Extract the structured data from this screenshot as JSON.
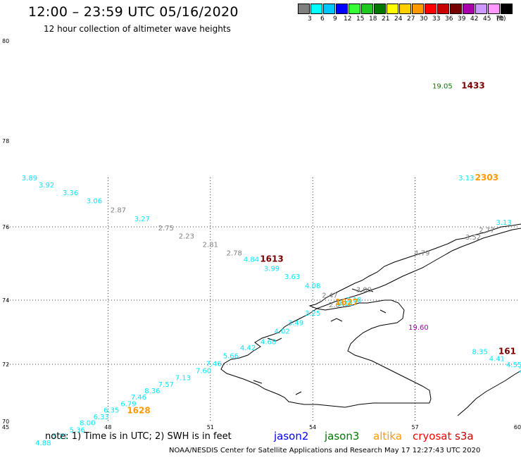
{
  "header": {
    "title": "12:00 – 23:59 UTC 05/16/2020",
    "subtitle": "12 hour collection of altimeter wave heights"
  },
  "scale": {
    "unit": "(ft)",
    "bins": [
      {
        "label": "3",
        "color": "#808080"
      },
      {
        "label": "6",
        "color": "#00ffff"
      },
      {
        "label": "9",
        "color": "#00c8ff"
      },
      {
        "label": "12",
        "color": "#0000ff"
      },
      {
        "label": "15",
        "color": "#33ff33"
      },
      {
        "label": "18",
        "color": "#22c822"
      },
      {
        "label": "21",
        "color": "#007800"
      },
      {
        "label": "24",
        "color": "#ffff00"
      },
      {
        "label": "27",
        "color": "#ffd000"
      },
      {
        "label": "30",
        "color": "#ff9900"
      },
      {
        "label": "33",
        "color": "#ff0000"
      },
      {
        "label": "36",
        "color": "#c80000"
      },
      {
        "label": "39",
        "color": "#780000"
      },
      {
        "label": "42",
        "color": "#aa00aa"
      },
      {
        "label": "45",
        "color": "#cc99ff"
      },
      {
        "label": "70",
        "color": "#ff99ff"
      },
      {
        "label": "",
        "color": "#000000"
      }
    ]
  },
  "axes": {
    "lon_labels": [
      "45",
      "48",
      "51",
      "54",
      "57",
      "60"
    ],
    "lat_labels": [
      "70",
      "72",
      "74",
      "76",
      "78",
      "80"
    ]
  },
  "points": [
    {
      "lon": 45.7,
      "lat": 77.08,
      "v": "3.89",
      "c": "#00e8ff"
    },
    {
      "lon": 46.2,
      "lat": 76.92,
      "v": "3.92",
      "c": "#00e8ff"
    },
    {
      "lon": 46.9,
      "lat": 76.74,
      "v": "3.36",
      "c": "#00e8ff"
    },
    {
      "lon": 47.6,
      "lat": 76.55,
      "v": "3.06",
      "c": "#00e8ff"
    },
    {
      "lon": 48.3,
      "lat": 76.34,
      "v": "2.87",
      "c": "#808080"
    },
    {
      "lon": 49.0,
      "lat": 76.13,
      "v": "3.27",
      "c": "#00e8ff"
    },
    {
      "lon": 49.7,
      "lat": 75.9,
      "v": "2.75",
      "c": "#808080"
    },
    {
      "lon": 50.3,
      "lat": 75.68,
      "v": "2.23",
      "c": "#808080"
    },
    {
      "lon": 51.0,
      "lat": 75.45,
      "v": "2.81",
      "c": "#808080"
    },
    {
      "lon": 51.7,
      "lat": 75.22,
      "v": "2.78",
      "c": "#808080"
    },
    {
      "lon": 52.2,
      "lat": 75.05,
      "v": "4.84",
      "c": "#00e8ff"
    },
    {
      "lon": 52.8,
      "lat": 74.8,
      "v": "3.99",
      "c": "#00e8ff"
    },
    {
      "lon": 53.4,
      "lat": 74.58,
      "v": "3.63",
      "c": "#00e8ff"
    },
    {
      "lon": 54.0,
      "lat": 74.33,
      "v": "4.08",
      "c": "#00e8ff"
    },
    {
      "lon": 54.5,
      "lat": 74.07,
      "v": "2.47",
      "c": "#808080"
    },
    {
      "lon": 54.7,
      "lat": 73.78,
      "v": "2.03",
      "c": "#808080"
    },
    {
      "lon": 55.2,
      "lat": 73.93,
      "v": "3.18",
      "c": "#00e8ff"
    },
    {
      "lon": 55.5,
      "lat": 74.22,
      "v": "3.00",
      "c": "#808080"
    },
    {
      "lon": 54.95,
      "lat": 73.82,
      "v": "3.11",
      "c": "#00e8ff"
    },
    {
      "lon": 54.0,
      "lat": 73.52,
      "v": "3.25",
      "c": "#00e8ff"
    },
    {
      "lon": 53.5,
      "lat": 73.22,
      "v": "3.49",
      "c": "#00e8ff"
    },
    {
      "lon": 53.1,
      "lat": 72.96,
      "v": "4.02",
      "c": "#00e8ff"
    },
    {
      "lon": 52.7,
      "lat": 72.63,
      "v": "4.68",
      "c": "#00e8ff"
    },
    {
      "lon": 52.1,
      "lat": 72.44,
      "v": "4.42",
      "c": "#00e8ff"
    },
    {
      "lon": 51.6,
      "lat": 72.19,
      "v": "5.66",
      "c": "#00e8ff"
    },
    {
      "lon": 51.1,
      "lat": 71.94,
      "v": "7.46",
      "c": "#00e8ff"
    },
    {
      "lon": 50.8,
      "lat": 71.69,
      "v": "7.60",
      "c": "#00e8ff"
    },
    {
      "lon": 50.2,
      "lat": 71.44,
      "v": "7.13",
      "c": "#00e8ff"
    },
    {
      "lon": 49.7,
      "lat": 71.21,
      "v": "7.57",
      "c": "#00e8ff"
    },
    {
      "lon": 49.3,
      "lat": 70.99,
      "v": "8.36",
      "c": "#00e8ff"
    },
    {
      "lon": 48.9,
      "lat": 70.76,
      "v": "7.46",
      "c": "#00e8ff"
    },
    {
      "lon": 48.6,
      "lat": 70.53,
      "v": "6.79",
      "c": "#00e8ff"
    },
    {
      "lon": 48.1,
      "lat": 70.31,
      "v": "6.35",
      "c": "#00e8ff"
    },
    {
      "lon": 47.8,
      "lat": 70.08,
      "v": "6.33",
      "c": "#00e8ff"
    },
    {
      "lon": 47.4,
      "lat": 69.86,
      "v": "8.00",
      "c": "#00e8ff"
    },
    {
      "lon": 47.1,
      "lat": 69.62,
      "v": "5.36",
      "c": "#00e8ff"
    },
    {
      "lon": 46.6,
      "lat": 69.4,
      "v": "5.21",
      "c": "#00e8ff"
    },
    {
      "lon": 46.1,
      "lat": 69.16,
      "v": "4.88",
      "c": "#00e8ff"
    },
    {
      "lon": 57.2,
      "lat": 75.22,
      "v": "4.79",
      "c": "#808080"
    },
    {
      "lon": 57.1,
      "lat": 73.08,
      "v": "19.60",
      "c": "#aa00aa"
    },
    {
      "lon": 58.7,
      "lat": 75.65,
      "v": "3.52",
      "c": "#808080"
    },
    {
      "lon": 59.1,
      "lat": 75.85,
      "v": "2.77",
      "c": "#808080"
    },
    {
      "lon": 59.6,
      "lat": 76.05,
      "v": "3.13",
      "c": "#00e8ff"
    },
    {
      "lon": 60.2,
      "lat": 76.3,
      "v": "3",
      "c": "#00e8ff"
    },
    {
      "lon": 58.9,
      "lat": 72.32,
      "v": "8.35",
      "c": "#00e8ff"
    },
    {
      "lon": 59.4,
      "lat": 72.1,
      "v": "4.41",
      "c": "#00e8ff"
    },
    {
      "lon": 59.9,
      "lat": 71.9,
      "v": "4.55",
      "c": "#00e8ff"
    },
    {
      "lon": 60.1,
      "lat": 71.72,
      "v": "2",
      "c": "#00e8ff"
    },
    {
      "lon": 57.8,
      "lat": 79.05,
      "v": "19.05",
      "c": "#007800"
    },
    {
      "lon": 58.5,
      "lat": 77.08,
      "v": "3.13",
      "c": "#00e8ff"
    }
  ],
  "time_labels": [
    {
      "lon": 52.8,
      "lat": 75.05,
      "v": "1613",
      "c": "#780000"
    },
    {
      "lon": 55.0,
      "lat": 73.85,
      "v": "1627",
      "c": "#ff9900"
    },
    {
      "lon": 48.9,
      "lat": 70.28,
      "v": "1628",
      "c": "#ff9900"
    },
    {
      "lon": 58.7,
      "lat": 79.05,
      "v": "1433",
      "c": "#780000"
    },
    {
      "lon": 59.1,
      "lat": 77.08,
      "v": "2303",
      "c": "#ff9900"
    },
    {
      "lon": 59.7,
      "lat": 72.32,
      "v": "161",
      "c": "#780000"
    }
  ],
  "note": "note:  1) Time is in UTC;  2) SWH is in feet",
  "satellites": [
    {
      "name": "jason2",
      "color": "#0000ff"
    },
    {
      "name": "jason3",
      "color": "#007800"
    },
    {
      "name": "altika",
      "color": "#ff9900"
    },
    {
      "name": "cryosat",
      "color": "#ff0000"
    },
    {
      "name": "s3a",
      "color": "#c80000"
    }
  ],
  "footer": "NOAA/NESDIS Center for Satellite Applications and Research      May 17 12:27:43 UTC 2020"
}
